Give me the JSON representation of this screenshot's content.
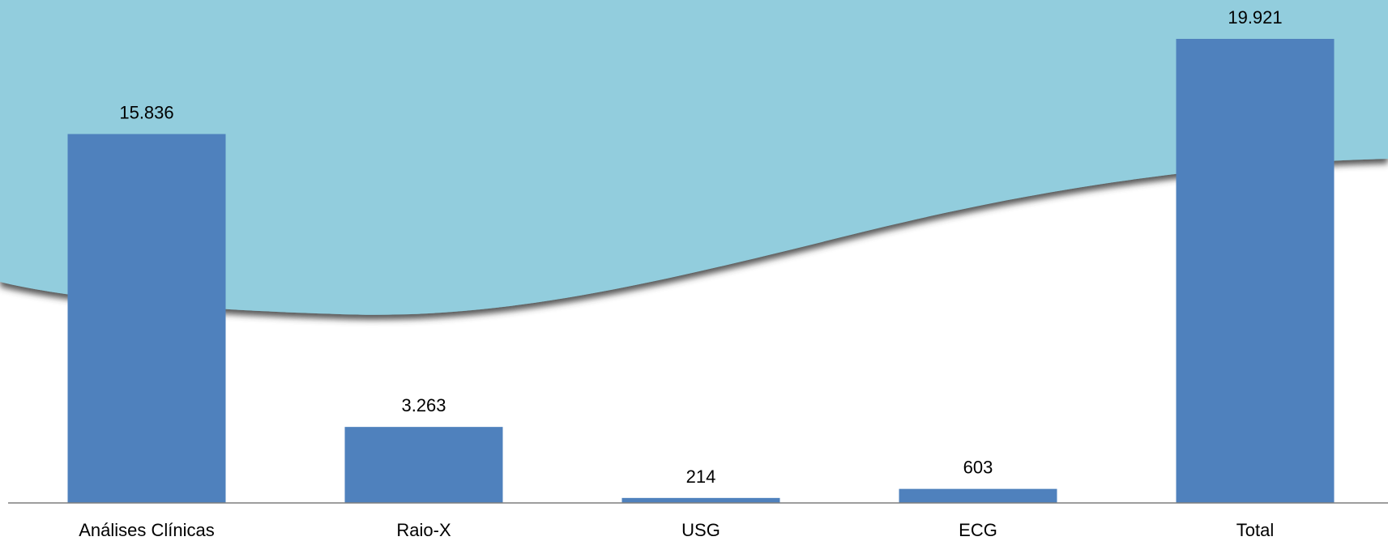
{
  "chart_data": {
    "type": "bar",
    "categories": [
      "Análises Clínicas",
      "Raio-X",
      "USG",
      "ECG",
      "Total"
    ],
    "values": [
      15836,
      3263,
      214,
      603,
      19921
    ],
    "value_labels": [
      "15.836",
      "3.263",
      "214",
      "603",
      "19.921"
    ],
    "title": "",
    "xlabel": "",
    "ylabel": "",
    "ylim": [
      0,
      20000
    ],
    "grid": false,
    "legend": "none"
  },
  "colors": {
    "bar": "#4f81bd",
    "background_wave": "#92cddd",
    "wave_shadow": "#4a4a4a",
    "axis": "#7f7f7f",
    "text": "#000000",
    "page": "#ffffff"
  }
}
